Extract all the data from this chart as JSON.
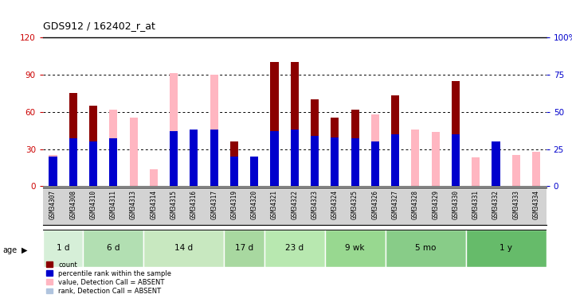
{
  "title": "GDS912 / 162402_r_at",
  "samples": [
    "GSM34307",
    "GSM34308",
    "GSM34310",
    "GSM34311",
    "GSM34313",
    "GSM34314",
    "GSM34315",
    "GSM34316",
    "GSM34317",
    "GSM34319",
    "GSM34320",
    "GSM34321",
    "GSM34322",
    "GSM34323",
    "GSM34324",
    "GSM34325",
    "GSM34326",
    "GSM34327",
    "GSM34328",
    "GSM34329",
    "GSM34330",
    "GSM34331",
    "GSM34332",
    "GSM34333",
    "GSM34334"
  ],
  "count_values": [
    0,
    75,
    65,
    0,
    0,
    0,
    0,
    0,
    0,
    36,
    0,
    100,
    100,
    70,
    55,
    62,
    0,
    73,
    0,
    0,
    85,
    0,
    0,
    0,
    0
  ],
  "rank_values": [
    20,
    32,
    30,
    32,
    0,
    0,
    37,
    38,
    38,
    20,
    20,
    37,
    38,
    34,
    33,
    32,
    30,
    35,
    0,
    0,
    35,
    0,
    30,
    0,
    0
  ],
  "absent_value": [
    25,
    0,
    0,
    62,
    55,
    14,
    91,
    0,
    90,
    0,
    0,
    0,
    0,
    0,
    0,
    0,
    58,
    0,
    46,
    44,
    0,
    23,
    0,
    25,
    28
  ],
  "absent_rank": [
    20,
    0,
    0,
    32,
    0,
    0,
    37,
    0,
    38,
    0,
    0,
    0,
    0,
    0,
    0,
    0,
    30,
    0,
    0,
    0,
    0,
    0,
    25,
    0,
    0
  ],
  "age_groups": [
    {
      "label": "1 d",
      "start": 0,
      "end": 2
    },
    {
      "label": "6 d",
      "start": 2,
      "end": 5
    },
    {
      "label": "14 d",
      "start": 5,
      "end": 9
    },
    {
      "label": "17 d",
      "start": 9,
      "end": 11
    },
    {
      "label": "23 d",
      "start": 11,
      "end": 14
    },
    {
      "label": "9 wk",
      "start": 14,
      "end": 17
    },
    {
      "label": "5 mo",
      "start": 17,
      "end": 21
    },
    {
      "label": "1 y",
      "start": 21,
      "end": 25
    }
  ],
  "age_group_colors": [
    "#d4edda",
    "#b2dfdb",
    "#c8e6c9",
    "#a5d6a7",
    "#b2dfdb",
    "#c8e6c9",
    "#a5d6a7",
    "#66bb6a"
  ],
  "ylim_left": [
    0,
    120
  ],
  "yticks_left": [
    0,
    30,
    60,
    90,
    120
  ],
  "ytick_labels_left": [
    "0",
    "30",
    "60",
    "90",
    "120"
  ],
  "right_ylim": [
    0,
    120
  ],
  "right_yticks": [
    0,
    30,
    60,
    90,
    120
  ],
  "right_ytick_labels": [
    "0",
    "25",
    "50",
    "75",
    "100%"
  ],
  "grid_lines": [
    30,
    60,
    90
  ],
  "bar_width": 0.4,
  "color_count": "#8B0000",
  "color_rank": "#0000CD",
  "color_absent_val": "#FFB6C1",
  "color_absent_rank": "#B0C4DE",
  "bg_plot": "#ffffff",
  "tick_label_color_left": "#cc0000",
  "tick_label_color_right": "#0000cc",
  "xticklabel_bg": "#d3d3d3"
}
